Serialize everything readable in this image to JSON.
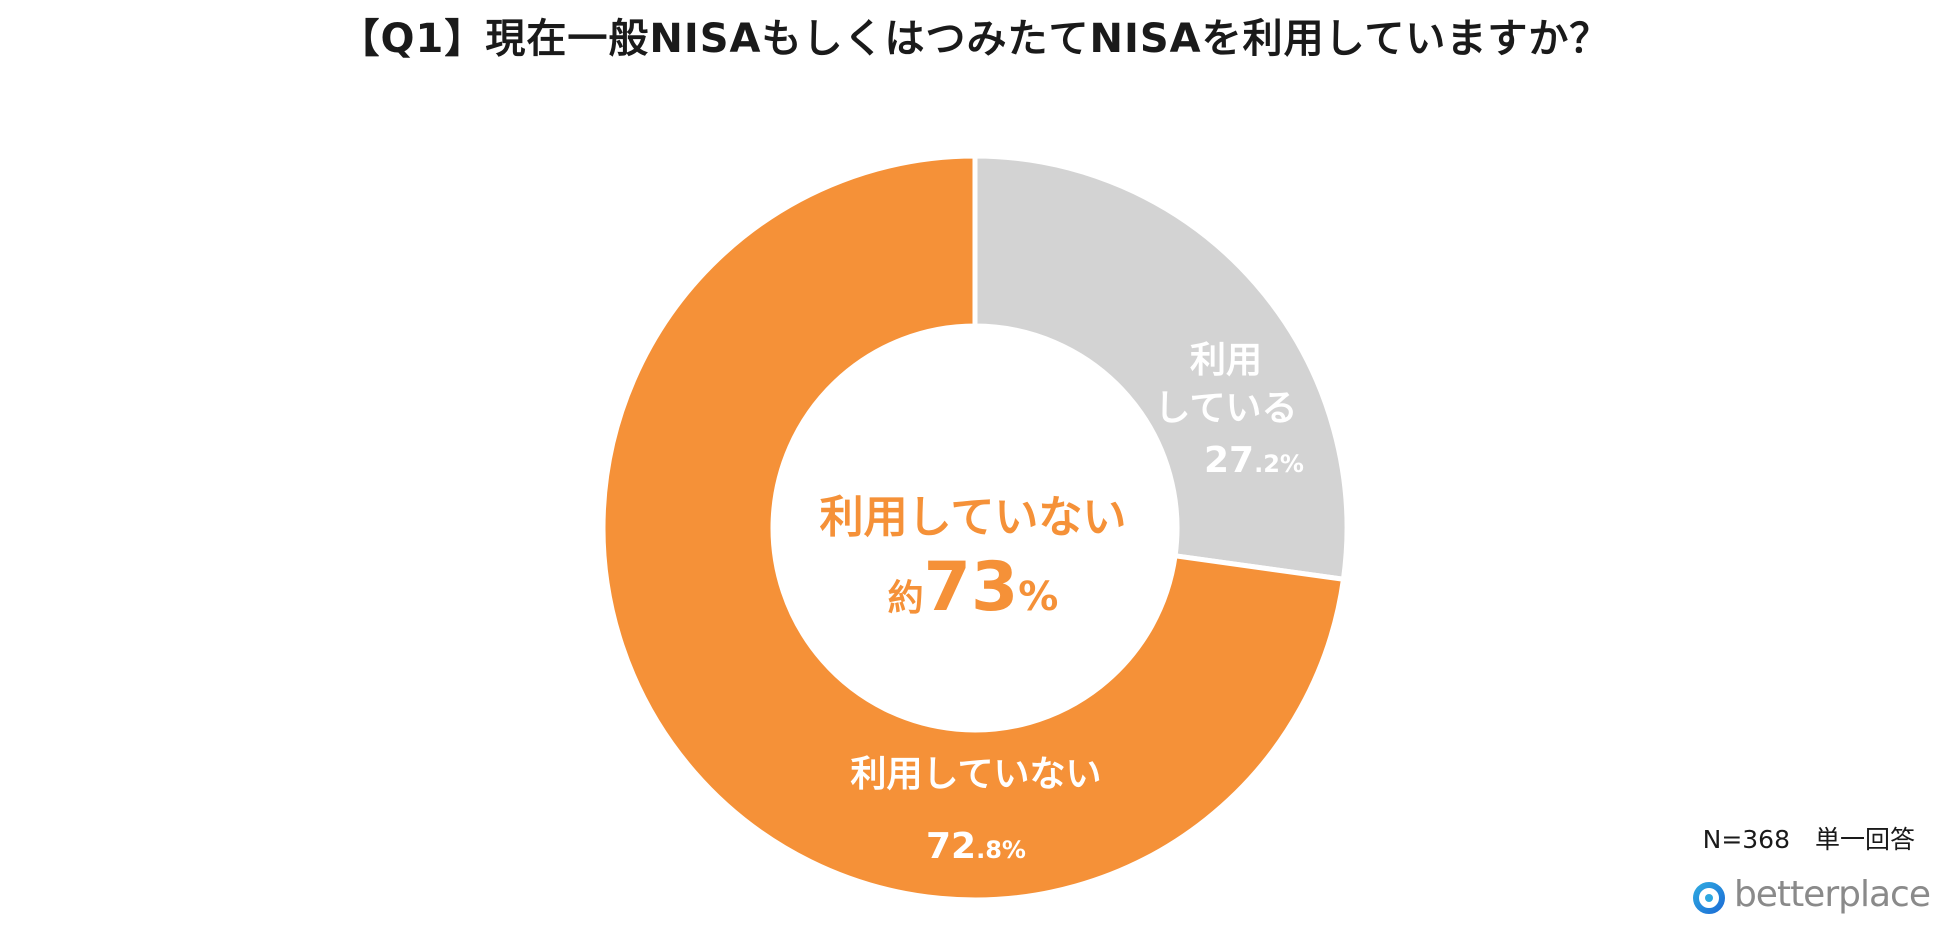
{
  "chart_data": {
    "type": "pie",
    "title": "【Q1】現在一般NISAもしくはつみたてNISAを利用していますか？",
    "categories": [
      "利用している",
      "利用していない"
    ],
    "values": [
      27.2,
      72.8
    ],
    "unit": "%",
    "colors": [
      "#d3d3d3",
      "#f59138"
    ],
    "labels": [
      {
        "name_lines": [
          "利用",
          "している"
        ],
        "value_int": "27",
        "value_dec": ".2%"
      },
      {
        "name_lines": [
          "利用していない"
        ],
        "value_int": "72",
        "value_dec": ".8%"
      }
    ],
    "center": {
      "line1": "利用していない",
      "prefix": "約",
      "value": "73",
      "suffix": "%"
    },
    "legend": "none"
  },
  "footer": {
    "note": "N=368　単一回答"
  },
  "logo": {
    "text": "betterplace",
    "icon": "betterplace-logo-icon",
    "colors": [
      "#2ea7e0",
      "#1d6fd6"
    ]
  }
}
